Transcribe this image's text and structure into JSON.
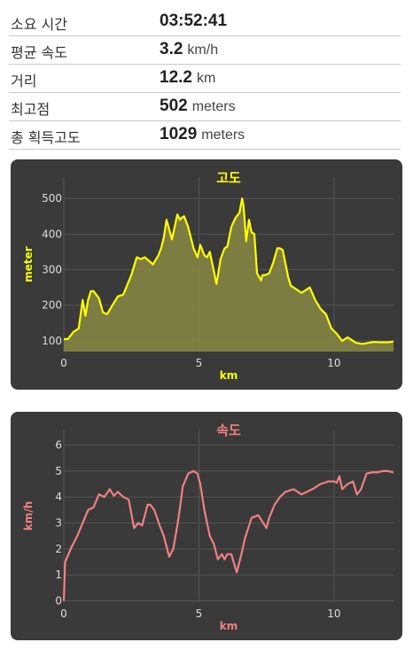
{
  "stats": [
    {
      "label": "소요 시간",
      "value": "03:52:41",
      "unit": ""
    },
    {
      "label": "평균 속도",
      "value": "3.2",
      "unit": "km/h"
    },
    {
      "label": "거리",
      "value": "12.2",
      "unit": "km"
    },
    {
      "label": "최고점",
      "value": "502",
      "unit": "meters"
    },
    {
      "label": "총 획득고도",
      "value": "1029",
      "unit": "meters"
    }
  ],
  "colors": {
    "panel_bg": "#3a3a3a",
    "altitude_line": "#ffff00",
    "altitude_fill": "#8a8a44",
    "speed_line": "#f08080",
    "grid": "#555555",
    "axis_text": "#dddddd"
  },
  "chart_data": [
    {
      "type": "area",
      "title": "고도",
      "xlabel": "km",
      "ylabel": "meter",
      "xlim": [
        0,
        12.2
      ],
      "ylim": [
        70,
        560
      ],
      "xticks": [
        0,
        5,
        10
      ],
      "yticks": [
        100,
        200,
        300,
        400,
        500
      ],
      "x": [
        0,
        0.15,
        0.35,
        0.55,
        0.7,
        0.8,
        0.9,
        1.0,
        1.1,
        1.3,
        1.45,
        1.6,
        1.8,
        2.0,
        2.2,
        2.5,
        2.7,
        2.85,
        3.0,
        3.3,
        3.5,
        3.6,
        3.7,
        3.8,
        4.0,
        4.2,
        4.3,
        4.35,
        4.45,
        4.6,
        4.8,
        4.95,
        5.05,
        5.2,
        5.3,
        5.4,
        5.5,
        5.65,
        5.8,
        5.95,
        6.05,
        6.2,
        6.35,
        6.5,
        6.6,
        6.65,
        6.75,
        6.85,
        6.95,
        7.05,
        7.15,
        7.3,
        7.35,
        7.45,
        7.6,
        7.75,
        7.9,
        8.0,
        8.1,
        8.3,
        8.4,
        8.6,
        8.8,
        9.1,
        9.3,
        9.5,
        9.7,
        9.9,
        10.1,
        10.3,
        10.5,
        10.8,
        11.0,
        11.1,
        11.3,
        11.5,
        11.7,
        12.0,
        12.2
      ],
      "values": [
        105,
        105,
        125,
        135,
        215,
        170,
        215,
        240,
        240,
        220,
        180,
        175,
        200,
        225,
        230,
        285,
        335,
        330,
        335,
        315,
        340,
        360,
        390,
        440,
        385,
        455,
        440,
        445,
        450,
        420,
        360,
        335,
        370,
        340,
        335,
        350,
        315,
        260,
        330,
        360,
        365,
        420,
        445,
        460,
        500,
        480,
        380,
        440,
        405,
        400,
        290,
        270,
        285,
        285,
        290,
        320,
        360,
        360,
        355,
        280,
        255,
        245,
        235,
        250,
        215,
        190,
        175,
        135,
        120,
        100,
        110,
        95,
        92,
        92,
        95,
        97,
        96,
        96,
        98
      ]
    },
    {
      "type": "line",
      "title": "속도",
      "xlabel": "km",
      "ylabel": "km/h",
      "xlim": [
        0,
        12.2
      ],
      "ylim": [
        -0.05,
        6.6
      ],
      "xticks": [
        0,
        5,
        10
      ],
      "yticks": [
        0,
        1,
        2,
        3,
        4,
        5,
        6
      ],
      "x": [
        0,
        0.05,
        0.3,
        0.5,
        0.7,
        0.9,
        1.1,
        1.3,
        1.5,
        1.7,
        1.85,
        2.0,
        2.2,
        2.4,
        2.6,
        2.75,
        2.9,
        3.1,
        3.2,
        3.35,
        3.55,
        3.7,
        3.9,
        4.05,
        4.2,
        4.3,
        4.4,
        4.6,
        4.8,
        4.95,
        5.05,
        5.2,
        5.4,
        5.55,
        5.7,
        5.85,
        5.95,
        6.05,
        6.2,
        6.4,
        6.55,
        6.7,
        6.95,
        7.2,
        7.5,
        7.6,
        7.8,
        8.0,
        8.2,
        8.5,
        8.8,
        9.0,
        9.2,
        9.5,
        9.8,
        10.0,
        10.1,
        10.2,
        10.3,
        10.5,
        10.7,
        10.85,
        11.0,
        11.2,
        11.4,
        11.6,
        11.8,
        12.0,
        12.2
      ],
      "series": [
        {
          "values": [
            0,
            1.5,
            2.1,
            2.5,
            3.0,
            3.5,
            3.6,
            4.1,
            4.0,
            4.3,
            4.05,
            4.2,
            4.0,
            3.9,
            2.8,
            3.0,
            2.9,
            3.7,
            3.7,
            3.5,
            2.9,
            2.5,
            1.7,
            2.0,
            2.9,
            3.6,
            4.4,
            4.9,
            5.0,
            4.9,
            4.5,
            3.5,
            2.5,
            2.2,
            1.6,
            1.8,
            1.6,
            1.8,
            1.8,
            1.1,
            1.7,
            2.4,
            3.2,
            3.3,
            2.8,
            3.2,
            3.7,
            4.0,
            4.2,
            4.3,
            4.1,
            4.2,
            4.3,
            4.5,
            4.6,
            4.6,
            4.55,
            4.8,
            4.3,
            4.5,
            4.6,
            4.1,
            4.3,
            4.9,
            4.95,
            4.95,
            5.0,
            5.0,
            4.95
          ]
        }
      ]
    }
  ]
}
